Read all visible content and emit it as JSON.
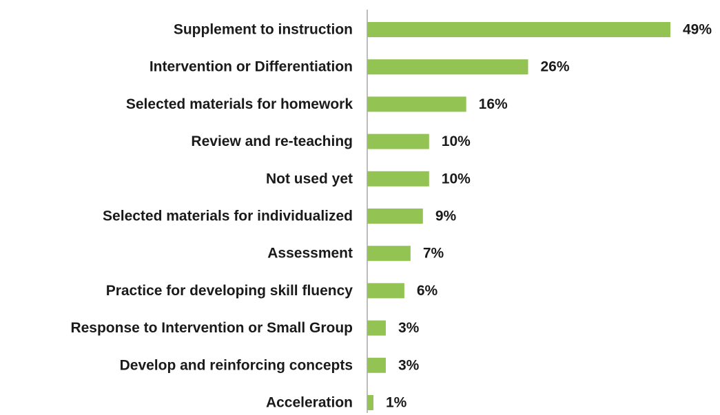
{
  "chart_data": {
    "type": "bar",
    "orientation": "horizontal",
    "categories": [
      "Supplement to instruction",
      "Intervention or Differentiation",
      "Selected materials for homework",
      "Review and re-teaching",
      "Not used yet",
      "Selected materials for individualized",
      "Assessment",
      "Practice for developing skill fluency",
      "Response to Intervention or Small Group",
      "Develop and reinforcing concepts",
      "Acceleration"
    ],
    "values": [
      49,
      26,
      16,
      10,
      10,
      9,
      7,
      6,
      3,
      3,
      1
    ],
    "value_labels": [
      "49%",
      "26%",
      "16%",
      "10%",
      "10%",
      "9%",
      "7%",
      "6%",
      "3%",
      "3%",
      "1%"
    ],
    "color": "#92c353"
  }
}
